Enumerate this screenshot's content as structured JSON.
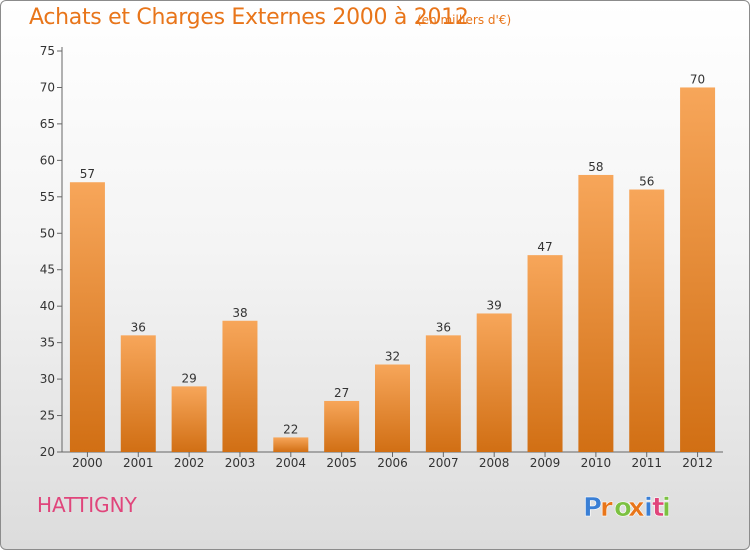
{
  "header": {
    "title": "Achats et Charges Externes 2000 à 2012",
    "unit": "(en milliers d'€)"
  },
  "footer": {
    "commune": "HATTIGNY",
    "logo_text": "Proxiti"
  },
  "colors": {
    "title": "#e8751a",
    "commune": "#e0457b",
    "bar_light": "#f7a65a",
    "bar_dark": "#d16f14",
    "logo_letters": [
      "#3a7fd5",
      "#e8751a",
      "#7cc142",
      "#e8751a",
      "#3a7fd5",
      "#e0457b",
      "#7cc142"
    ]
  },
  "chart_data": {
    "type": "bar",
    "title": "Achats et Charges Externes 2000 à 2012",
    "subtitle": "(en milliers d'€)",
    "categories": [
      "2000",
      "2001",
      "2002",
      "2003",
      "2004",
      "2005",
      "2006",
      "2007",
      "2008",
      "2009",
      "2010",
      "2011",
      "2012"
    ],
    "values": [
      57,
      36,
      29,
      38,
      22,
      27,
      32,
      36,
      39,
      47,
      58,
      56,
      70
    ],
    "ylim": [
      20,
      75
    ],
    "yticks": [
      20,
      25,
      30,
      35,
      40,
      45,
      50,
      55,
      60,
      65,
      70,
      75
    ],
    "grid": false,
    "data_labels": true
  }
}
